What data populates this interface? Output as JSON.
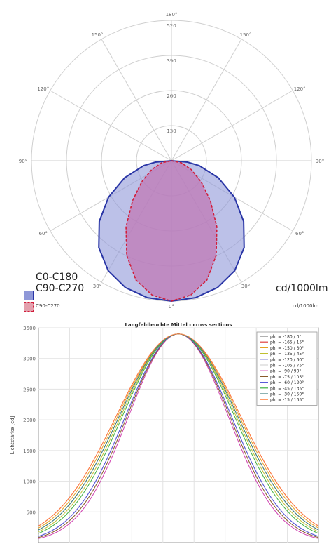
{
  "overlay": {
    "c0_label": "C0-C180",
    "c90_label": "C90-C270",
    "unit_label": "cd/1000lm",
    "small_legend_c90": "C90-C270",
    "small_unit": "cd/1000lm"
  },
  "colors": {
    "c0_fill": "#8f98d8",
    "c0_stroke": "#2a36a6",
    "c90_fill": "#c078b6",
    "c90_stroke": "#d11d3a",
    "grid": "#cfcfcf"
  },
  "chart_data": [
    {
      "type": "polar",
      "angle_labels": [
        "180°",
        "150°",
        "150°",
        "120°",
        "120°",
        "90°",
        "90°",
        "60°",
        "60°",
        "30°",
        "30°",
        "0°"
      ],
      "radial_ticks": [
        130,
        260,
        390,
        520
      ],
      "radial_max": 520,
      "series": [
        {
          "name": "C0-C180",
          "curve": [
            [
              0,
              520
            ],
            [
              10,
              515
            ],
            [
              20,
              500
            ],
            [
              30,
              470
            ],
            [
              40,
              420
            ],
            [
              50,
              350
            ],
            [
              60,
              270
            ],
            [
              70,
              185
            ],
            [
              80,
              105
            ],
            [
              85,
              60
            ],
            [
              90,
              0
            ]
          ]
        },
        {
          "name": "C90-C270",
          "curve": [
            [
              0,
              520
            ],
            [
              10,
              505
            ],
            [
              20,
              470
            ],
            [
              30,
              405
            ],
            [
              40,
              320
            ],
            [
              50,
              230
            ],
            [
              60,
              155
            ],
            [
              70,
              95
            ],
            [
              80,
              45
            ],
            [
              90,
              0
            ]
          ]
        }
      ]
    },
    {
      "type": "line",
      "title": "Langfeldleuchte Mittel - cross sections",
      "ylabel": "Lichtstärke [cd]",
      "xlim": [
        -90,
        90
      ],
      "ylim": [
        0,
        3500
      ],
      "yticks": [
        500,
        1000,
        1500,
        2000,
        2500,
        3000,
        3500
      ],
      "series": [
        {
          "name": "phi = -180 / 0°",
          "color": "#7d7d7d",
          "sigma": 38
        },
        {
          "name": "phi = -165 / 15°",
          "color": "#e04040",
          "sigma": 40
        },
        {
          "name": "phi = -150 / 30°",
          "color": "#e6a020",
          "sigma": 39
        },
        {
          "name": "phi = -135 / 45°",
          "color": "#c0c030",
          "sigma": 37
        },
        {
          "name": "phi = -120 / 60°",
          "color": "#6060c8",
          "sigma": 34
        },
        {
          "name": "phi = -105 / 75°",
          "color": "#d4d4d4",
          "sigma": 33
        },
        {
          "name": "phi = -90 / 90°",
          "color": "#d040b0",
          "sigma": 32
        },
        {
          "name": "phi = -75 / 105°",
          "color": "#8a5a2a",
          "sigma": 33
        },
        {
          "name": "phi = -60 / 120°",
          "color": "#5a5ad8",
          "sigma": 34
        },
        {
          "name": "phi = -45 / 135°",
          "color": "#40b040",
          "sigma": 36
        },
        {
          "name": "phi = -30 / 150°",
          "color": "#408080",
          "sigma": 38
        },
        {
          "name": "phi = -15 / 165°",
          "color": "#ff8040",
          "sigma": 40
        }
      ]
    }
  ]
}
